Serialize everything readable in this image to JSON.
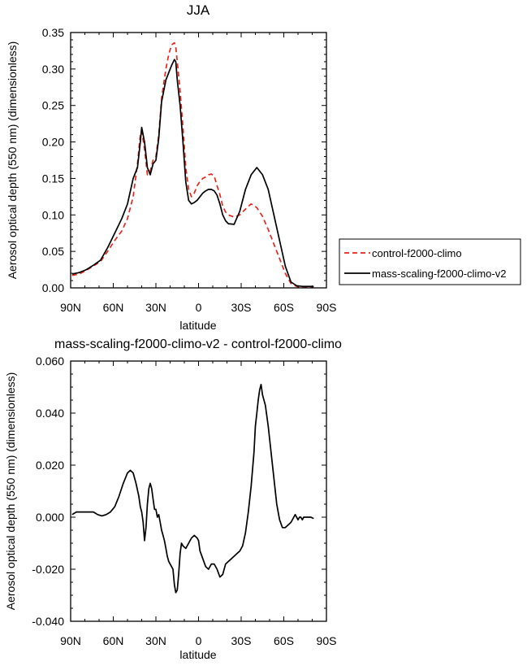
{
  "chart_data": [
    {
      "type": "line",
      "title": "JJA",
      "xlabel": "latitude",
      "ylabel": "Aerosol optical depth (550 nm) (dimensionless)",
      "xlim": [
        90,
        -90
      ],
      "ylim": [
        0,
        0.35
      ],
      "x_ticks": [
        90,
        60,
        30,
        0,
        -30,
        -60,
        -90
      ],
      "x_tick_labels": [
        "90N",
        "60N",
        "30N",
        "0",
        "30S",
        "60S",
        "90S"
      ],
      "y_ticks": [
        0,
        0.05,
        0.1,
        0.15,
        0.2,
        0.25,
        0.3,
        0.35
      ],
      "y_tick_labels": [
        "0.00",
        "0.05",
        "0.10",
        "0.15",
        "0.20",
        "0.25",
        "0.30",
        "0.35"
      ],
      "grid": false,
      "legend": "outside-right",
      "series": [
        {
          "name": "control-f2000-climo",
          "color": "#e8261f",
          "dash": "dashed",
          "x": [
            89,
            84,
            79,
            74,
            69,
            64,
            59,
            54,
            50,
            46,
            43,
            41,
            40,
            38,
            36,
            34,
            32,
            30,
            28,
            26,
            23,
            21,
            19,
            17,
            16,
            15,
            13,
            11,
            9,
            7,
            5,
            3,
            1,
            -1,
            -3,
            -5,
            -7,
            -9,
            -11,
            -13,
            -15,
            -17,
            -19,
            -21,
            -25,
            -29,
            -33,
            -37,
            -41,
            -45,
            -49,
            -53,
            -57,
            -61,
            -65,
            -69,
            -73,
            -77,
            -81
          ],
          "values": [
            0.017,
            0.019,
            0.024,
            0.03,
            0.036,
            0.05,
            0.065,
            0.078,
            0.095,
            0.125,
            0.17,
            0.21,
            0.215,
            0.19,
            0.155,
            0.16,
            0.175,
            0.18,
            0.21,
            0.26,
            0.3,
            0.32,
            0.333,
            0.336,
            0.33,
            0.31,
            0.27,
            0.22,
            0.165,
            0.135,
            0.125,
            0.13,
            0.14,
            0.146,
            0.15,
            0.152,
            0.155,
            0.156,
            0.153,
            0.14,
            0.128,
            0.112,
            0.104,
            0.1,
            0.097,
            0.1,
            0.108,
            0.115,
            0.11,
            0.098,
            0.08,
            0.06,
            0.04,
            0.02,
            0.006,
            0.002,
            0.001,
            0.001,
            0.001
          ]
        },
        {
          "name": "mass-scaling-f2000-climo-v2",
          "color": "#000000",
          "dash": "solid",
          "x": [
            89,
            84,
            79,
            74,
            69,
            64,
            59,
            54,
            50,
            46,
            43,
            41,
            40,
            38,
            36,
            34,
            32,
            30,
            28,
            26,
            23,
            21,
            19,
            17,
            16,
            15,
            13,
            11,
            9,
            7,
            5,
            3,
            1,
            -1,
            -3,
            -5,
            -7,
            -9,
            -11,
            -13,
            -15,
            -17,
            -19,
            -21,
            -25,
            -29,
            -33,
            -37,
            -41,
            -45,
            -49,
            -53,
            -57,
            -61,
            -65,
            -69,
            -73,
            -77,
            -81
          ],
          "values": [
            0.019,
            0.021,
            0.025,
            0.031,
            0.038,
            0.055,
            0.075,
            0.095,
            0.115,
            0.15,
            0.165,
            0.2,
            0.22,
            0.2,
            0.165,
            0.155,
            0.17,
            0.175,
            0.205,
            0.255,
            0.285,
            0.295,
            0.305,
            0.313,
            0.31,
            0.285,
            0.25,
            0.2,
            0.145,
            0.12,
            0.115,
            0.117,
            0.12,
            0.125,
            0.13,
            0.133,
            0.135,
            0.135,
            0.133,
            0.127,
            0.115,
            0.1,
            0.092,
            0.088,
            0.087,
            0.105,
            0.135,
            0.155,
            0.165,
            0.155,
            0.135,
            0.1,
            0.065,
            0.03,
            0.008,
            0.003,
            0.002,
            0.002,
            0.002
          ]
        }
      ]
    },
    {
      "type": "line",
      "title": "mass-scaling-f2000-climo-v2 - control-f2000-climo",
      "xlabel": "latitude",
      "ylabel": "Aerosol optical depth (550 nm) (dimensionless)",
      "xlim": [
        90,
        -90
      ],
      "ylim": [
        -0.04,
        0.06
      ],
      "x_ticks": [
        90,
        60,
        30,
        0,
        -30,
        -60,
        -90
      ],
      "x_tick_labels": [
        "90N",
        "60N",
        "30N",
        "0",
        "30S",
        "60S",
        "90S"
      ],
      "y_ticks": [
        -0.04,
        -0.02,
        0,
        0.02,
        0.04,
        0.06
      ],
      "y_tick_labels": [
        "-0.040",
        "-0.020",
        "0.000",
        "0.020",
        "0.040",
        "0.060"
      ],
      "grid": false,
      "series": [
        {
          "color": "#000000",
          "dash": "solid",
          "x": [
            89,
            86,
            83,
            80,
            77,
            74,
            71,
            68,
            65,
            62,
            59,
            56,
            53,
            50,
            48,
            46,
            44,
            42,
            41,
            40,
            39,
            38,
            37,
            36,
            35,
            34,
            33,
            32,
            31,
            30,
            29,
            28,
            27,
            26,
            25,
            24,
            23,
            22,
            21,
            20,
            19,
            18,
            17,
            16,
            15,
            14,
            13,
            12,
            11,
            9,
            7,
            5,
            3,
            1,
            0,
            -1,
            -3,
            -5,
            -7,
            -9,
            -11,
            -13,
            -15,
            -17,
            -19,
            -21,
            -23,
            -25,
            -27,
            -29,
            -31,
            -33,
            -35,
            -37,
            -39,
            -40,
            -41,
            -42,
            -43,
            -44,
            -45,
            -47,
            -49,
            -51,
            -53,
            -55,
            -57,
            -59,
            -61,
            -63,
            -65,
            -67,
            -68,
            -69,
            -70,
            -71,
            -72,
            -73,
            -74,
            -75,
            -77,
            -79,
            -81
          ],
          "values": [
            0.001,
            0.002,
            0.002,
            0.002,
            0.002,
            0.002,
            0.001,
            0.0005,
            0.001,
            0.002,
            0.004,
            0.008,
            0.013,
            0.017,
            0.018,
            0.017,
            0.013,
            0.008,
            0.004,
            0.002,
            -0.002,
            -0.009,
            -0.004,
            0.005,
            0.011,
            0.013,
            0.011,
            0.007,
            0.003,
            0.003,
            0.0,
            0.001,
            -0.002,
            -0.005,
            -0.007,
            -0.009,
            -0.012,
            -0.015,
            -0.017,
            -0.018,
            -0.019,
            -0.02,
            -0.026,
            -0.029,
            -0.028,
            -0.022,
            -0.014,
            -0.01,
            -0.011,
            -0.012,
            -0.01,
            -0.008,
            -0.007,
            -0.008,
            -0.009,
            -0.013,
            -0.016,
            -0.019,
            -0.02,
            -0.018,
            -0.018,
            -0.02,
            -0.023,
            -0.022,
            -0.018,
            -0.017,
            -0.016,
            -0.015,
            -0.014,
            -0.013,
            -0.011,
            -0.006,
            0.002,
            0.012,
            0.025,
            0.035,
            0.04,
            0.045,
            0.049,
            0.051,
            0.047,
            0.043,
            0.035,
            0.025,
            0.015,
            0.005,
            -0.001,
            -0.004,
            -0.004,
            -0.003,
            -0.002,
            0.0,
            0.001,
            0.0,
            -0.001,
            0.0,
            0.0,
            -0.001,
            0.0,
            0.0,
            0.0,
            0.0,
            -0.0005
          ]
        }
      ]
    }
  ]
}
